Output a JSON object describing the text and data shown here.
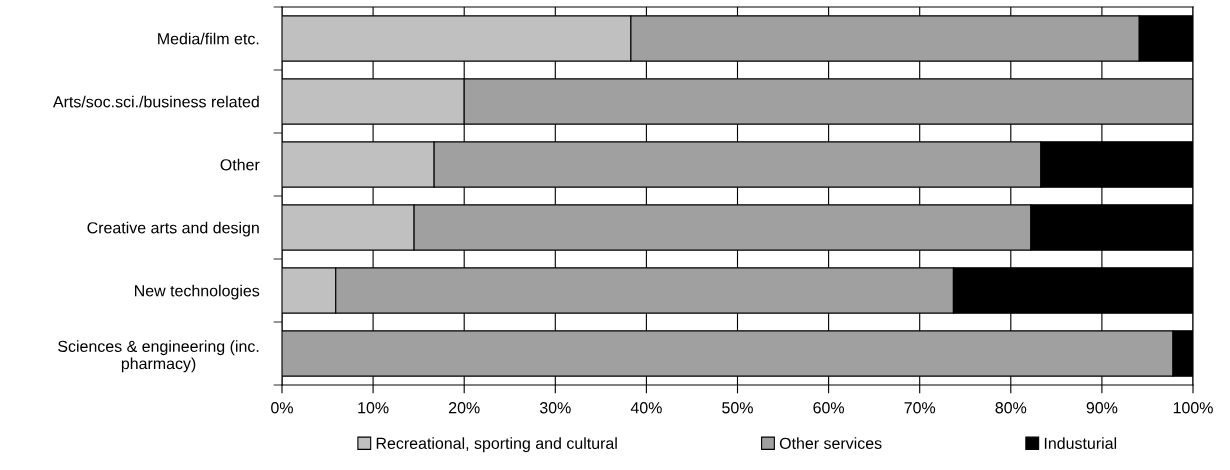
{
  "chart_data": {
    "type": "bar",
    "orientation": "horizontal",
    "stacked": true,
    "categories": [
      "Media/film etc.",
      "Arts/soc.sci./business related",
      "Other",
      "Creative arts and design",
      "New technologies",
      "Sciences & engineering (inc. pharmacy)"
    ],
    "series": [
      {
        "name": "Recreational, sporting and cultural",
        "color": "#c0c0c0",
        "values": [
          38.3,
          20.0,
          16.7,
          14.5,
          5.9,
          0
        ]
      },
      {
        "name": "Other services",
        "color": "#a0a0a0",
        "values": [
          55.8,
          80.0,
          66.6,
          67.7,
          67.8,
          97.8
        ]
      },
      {
        "name": "Industurial",
        "color": "#000000",
        "values": [
          5.9,
          0,
          16.7,
          17.8,
          26.3,
          2.2
        ]
      }
    ],
    "xlim": [
      0,
      100
    ],
    "xticks": [
      {
        "value": 0,
        "label": "0%"
      },
      {
        "value": 10,
        "label": "10%"
      },
      {
        "value": 20,
        "label": "20%"
      },
      {
        "value": 30,
        "label": "30%"
      },
      {
        "value": 40,
        "label": "40%"
      },
      {
        "value": 50,
        "label": "50%"
      },
      {
        "value": 60,
        "label": "60%"
      },
      {
        "value": 70,
        "label": "70%"
      },
      {
        "value": 80,
        "label": "80%"
      },
      {
        "value": 90,
        "label": "90%"
      },
      {
        "value": 100,
        "label": "100%"
      }
    ],
    "grid": "x",
    "legend": "bottom"
  }
}
